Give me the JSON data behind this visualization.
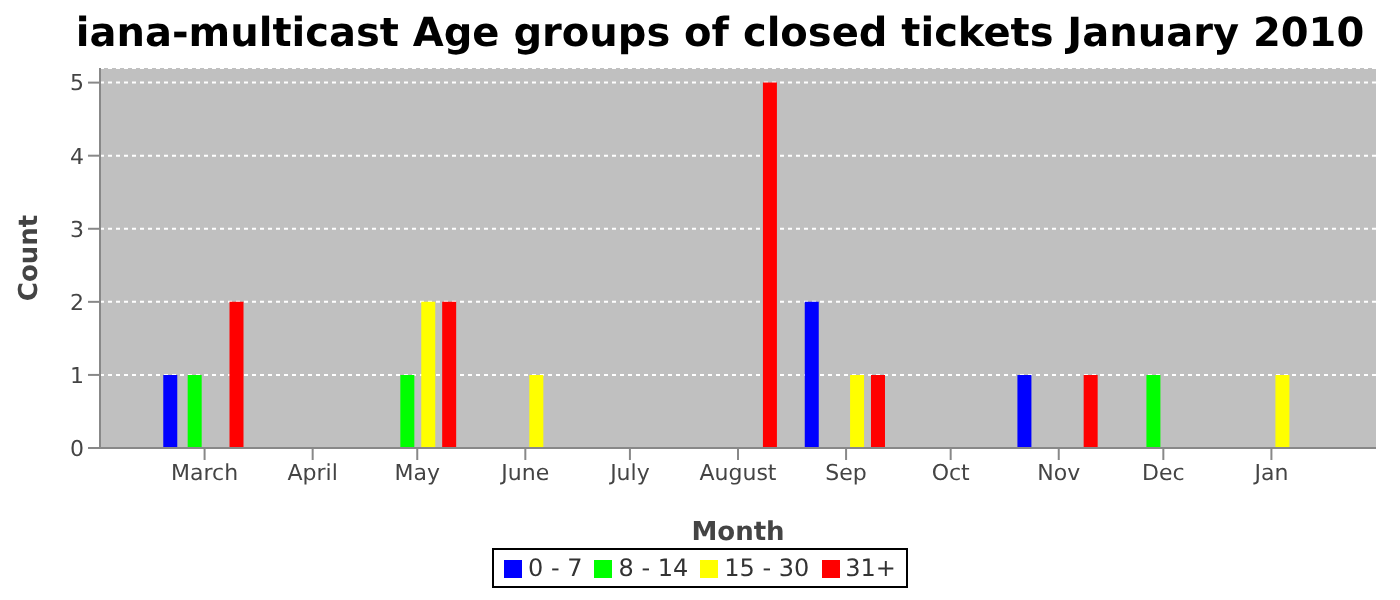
{
  "chart_data": {
    "type": "bar",
    "title": "iana-multicast Age groups of closed tickets January 2010",
    "xlabel": "Month",
    "ylabel": "Count",
    "xlim": [
      "2009-01-30",
      "2010-01-31"
    ],
    "xticks": [
      {
        "value": "2009-03-01",
        "label": "March"
      },
      {
        "value": "2009-04-01",
        "label": "April"
      },
      {
        "value": "2009-05-01",
        "label": "May"
      },
      {
        "value": "2009-06-01",
        "label": "June"
      },
      {
        "value": "2009-07-01",
        "label": "July"
      },
      {
        "value": "2009-08-01",
        "label": "August"
      },
      {
        "value": "2009-09-01",
        "label": "Sep"
      },
      {
        "value": "2009-10-01",
        "label": "Oct"
      },
      {
        "value": "2009-11-01",
        "label": "Nov"
      },
      {
        "value": "2009-12-01",
        "label": "Dec"
      },
      {
        "value": "2010-01-01",
        "label": "Jan"
      }
    ],
    "ylim": [
      0,
      5.2
    ],
    "yticks": [
      0,
      1,
      2,
      3,
      4,
      5
    ],
    "grid": "y",
    "legend": "bottom",
    "series": [
      {
        "name": "0 - 7",
        "color": "#0000ff",
        "x": [
          "2009-02-19",
          "2009-08-22",
          "2009-10-22"
        ],
        "values": [
          1,
          2,
          1
        ]
      },
      {
        "name": "8 - 14",
        "color": "#00ff00",
        "x": [
          "2009-02-26",
          "2009-04-28",
          "2009-11-28"
        ],
        "values": [
          1,
          1,
          1
        ]
      },
      {
        "name": "15 - 30",
        "color": "#ffff00",
        "x": [
          "2009-05-04",
          "2009-06-04",
          "2009-09-04",
          "2010-01-04"
        ],
        "values": [
          2,
          1,
          1,
          1
        ]
      },
      {
        "name": "31+",
        "color": "#ff0000",
        "x": [
          "2009-03-10",
          "2009-05-10",
          "2009-08-10",
          "2009-09-10",
          "2009-11-10"
        ],
        "values": [
          2,
          2,
          5,
          1,
          1
        ]
      }
    ]
  }
}
